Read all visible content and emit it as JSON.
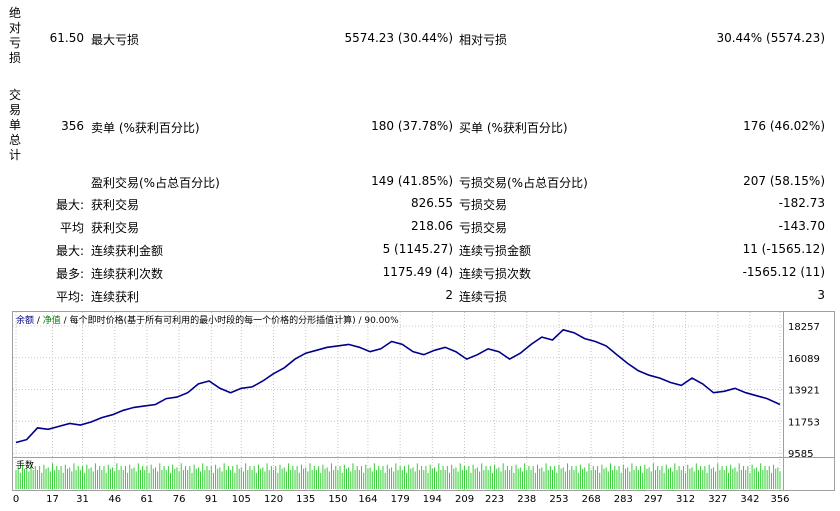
{
  "stats": {
    "drawdown_group_label": "绝对亏损",
    "trades_group_label": "交易单总计",
    "absolute_drawdown_value": "61.50",
    "max_drawdown_label": "最大亏损",
    "max_drawdown_value": "5574.23 (30.44%)",
    "relative_drawdown_label": "相对亏损",
    "relative_drawdown_value": "30.44% (5574.23)",
    "total_trades_value": "356",
    "short_label": "卖单 (%获利百分比)",
    "short_value": "180 (37.78%)",
    "long_label": "买单 (%获利百分比)",
    "long_value": "176 (46.02%)",
    "profit_trades_label": "盈利交易(%占总百分比)",
    "profit_trades_value": "149 (41.85%)",
    "loss_trades_label": "亏损交易(%占总百分比)",
    "loss_trades_value": "207 (58.15%)",
    "largest_prefix": "最大:",
    "largest_profit_label": "获利交易",
    "largest_profit_value": "826.55",
    "largest_loss_label": "亏损交易",
    "largest_loss_value": "-182.73",
    "average_prefix": "平均",
    "average_profit_label": "获利交易",
    "average_profit_value": "218.06",
    "average_loss_label": "亏损交易",
    "average_loss_value": "-143.70",
    "max_consec_prefix": "最大:",
    "max_consec_wins_label": "连续获利金额",
    "max_consec_wins_value": "5 (1145.27)",
    "max_consec_losses_label": "连续亏损金额",
    "max_consec_losses_value": "11 (-1565.12)",
    "maximal_prefix": "最多:",
    "maximal_consec_profit_label": "连续获利次数",
    "maximal_consec_profit_value": "1175.49 (4)",
    "maximal_consec_loss_label": "连续亏损次数",
    "maximal_consec_loss_value": "-1565.12 (11)",
    "avg_consec_prefix": "平均:",
    "avg_consec_wins_label": "连续获利",
    "avg_consec_wins_value": "2",
    "avg_consec_losses_label": "连续亏损",
    "avg_consec_losses_value": "3"
  },
  "chart_header": {
    "balance": "余额",
    "sep1": "/",
    "equity": "净值",
    "sep2": "/",
    "description": "每个即时价格(基于所有可利用的最小时段的每一个价格的分形插值计算)",
    "sep3": "/",
    "quality": "90.00%"
  },
  "volume_label": "手数",
  "colors": {
    "balance_line": "#00008b",
    "volume_bar": "#32cd32",
    "grid": "#c8c8c8"
  },
  "chart_data": {
    "type": "line",
    "title": "",
    "y_ticks": [
      "18257",
      "16089",
      "13921",
      "11753",
      "9585"
    ],
    "y_range": [
      9585,
      18257
    ],
    "x_ticks": [
      "0",
      "17",
      "31",
      "46",
      "61",
      "76",
      "91",
      "105",
      "120",
      "135",
      "150",
      "164",
      "179",
      "194",
      "209",
      "223",
      "238",
      "253",
      "268",
      "283",
      "297",
      "312",
      "327",
      "342",
      "356"
    ],
    "x_range": [
      0,
      356
    ],
    "series": [
      {
        "x": [
          0,
          5,
          10,
          15,
          20,
          25,
          30,
          35,
          40,
          45,
          50,
          55,
          60,
          65,
          70,
          75,
          80,
          85,
          90,
          95,
          100,
          105,
          110,
          115,
          120,
          125,
          130,
          135,
          140,
          145,
          150,
          155,
          160,
          165,
          170,
          175,
          180,
          185,
          190,
          195,
          200,
          205,
          210,
          215,
          220,
          225,
          230,
          235,
          240,
          245,
          250,
          255,
          260,
          265,
          270,
          275,
          280,
          285,
          290,
          295,
          300,
          305,
          310,
          315,
          320,
          325,
          330,
          335,
          340,
          345,
          350,
          356
        ],
        "values": [
          10300,
          10500,
          11300,
          11200,
          11400,
          11600,
          11500,
          11700,
          12000,
          12200,
          12500,
          12700,
          12800,
          12900,
          13300,
          13400,
          13700,
          14300,
          14500,
          14000,
          13700,
          14000,
          14100,
          14500,
          15000,
          15400,
          16000,
          16400,
          16600,
          16800,
          16900,
          17000,
          16800,
          16500,
          16700,
          17200,
          17000,
          16500,
          16300,
          16600,
          16800,
          16500,
          16000,
          16300,
          16700,
          16500,
          16000,
          16400,
          17000,
          17500,
          17300,
          18000,
          17800,
          17400,
          17200,
          16900,
          16300,
          15700,
          15200,
          14900,
          14700,
          14400,
          14200,
          14700,
          14300,
          13700,
          13800,
          14000,
          13700,
          13500,
          13300,
          12900
        ]
      }
    ],
    "volume": [
      0.7,
      0.85,
      0.6,
      0.9,
      0.75,
      0.8,
      0.65,
      0.95,
      0.7,
      0.85
    ]
  }
}
